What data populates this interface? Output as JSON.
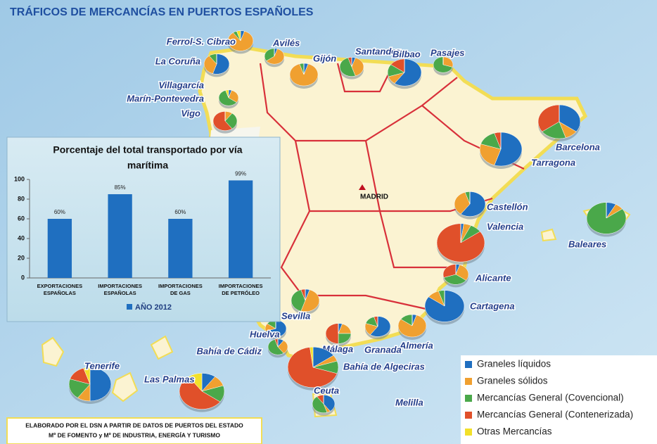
{
  "title": "TRÁFICOS DE MERCANCÍAS EN PUERTOS ESPAÑOLES",
  "capital": "MADRID",
  "legend": [
    {
      "name": "Graneles líquidos",
      "color": "#1f6fc0"
    },
    {
      "name": "Graneles sólidos",
      "color": "#f0a030"
    },
    {
      "name": "Mercancías General (Covencional)",
      "color": "#4aa84a"
    },
    {
      "name": "Mercancías General (Contenerizada)",
      "color": "#e0502a"
    },
    {
      "name": "Otras Mercancías",
      "color": "#f2e02a"
    }
  ],
  "ports": [
    {
      "name": "Ferrol-S. Cibrao",
      "shares": [
        5,
        85,
        5,
        0,
        5
      ]
    },
    {
      "name": "Avilés",
      "shares": [
        5,
        60,
        35,
        0,
        0
      ]
    },
    {
      "name": "La Coruña",
      "shares": [
        55,
        35,
        10,
        0,
        0
      ]
    },
    {
      "name": "Gijón",
      "shares": [
        5,
        90,
        5,
        0,
        0
      ]
    },
    {
      "name": "Santander",
      "shares": [
        5,
        40,
        50,
        5,
        0
      ]
    },
    {
      "name": "Bilbao",
      "shares": [
        60,
        10,
        15,
        15,
        0
      ]
    },
    {
      "name": "Pasajes",
      "shares": [
        0,
        30,
        70,
        0,
        0
      ]
    },
    {
      "name": "Villagarcía"
    },
    {
      "name": "Marín-Pontevedra",
      "shares": [
        5,
        30,
        60,
        0,
        5
      ]
    },
    {
      "name": "Vigo",
      "shares": [
        0,
        10,
        30,
        60,
        0
      ]
    },
    {
      "name": "Barcelona",
      "shares": [
        35,
        10,
        20,
        35,
        0
      ]
    },
    {
      "name": "Tarragona",
      "shares": [
        55,
        25,
        15,
        5,
        0
      ]
    },
    {
      "name": "Castellón",
      "shares": [
        60,
        35,
        5,
        0,
        0
      ]
    },
    {
      "name": "Valencia",
      "shares": [
        2,
        5,
        8,
        85,
        0
      ]
    },
    {
      "name": "Baleares",
      "shares": [
        8,
        7,
        85,
        0,
        0
      ]
    },
    {
      "name": "Alicante",
      "shares": [
        5,
        30,
        35,
        30,
        0
      ]
    },
    {
      "name": "Cartagena",
      "shares": [
        85,
        10,
        5,
        0,
        0
      ]
    },
    {
      "name": "Sevilla",
      "shares": [
        5,
        50,
        40,
        5,
        0
      ]
    },
    {
      "name": "Huelva",
      "shares": [
        70,
        15,
        15,
        0,
        0
      ]
    },
    {
      "name": "Almería",
      "shares": [
        5,
        80,
        15,
        0,
        0
      ]
    },
    {
      "name": "Granada",
      "shares": [
        60,
        20,
        15,
        5,
        0
      ]
    },
    {
      "name": "Málaga",
      "shares": [
        5,
        20,
        25,
        50,
        0
      ]
    },
    {
      "name": "Bahía de Cádiz",
      "shares": [
        10,
        30,
        55,
        5,
        0
      ]
    },
    {
      "name": "Bahía de Algeciras",
      "shares": [
        15,
        5,
        10,
        68,
        2
      ]
    },
    {
      "name": "Ceuta",
      "shares": [
        40,
        5,
        45,
        10,
        0
      ]
    },
    {
      "name": "Melilla"
    },
    {
      "name": "Tenerife",
      "shares": [
        50,
        10,
        20,
        15,
        5
      ]
    },
    {
      "name": "Las Palmas",
      "shares": [
        10,
        10,
        15,
        55,
        10
      ]
    }
  ],
  "footer": [
    "ELABORADO POR EL DSN A PARTIR DE DATOS DE PUERTOS DEL ESTADO",
    "Mº DE FOMENTO y Mº DE INDUSTRIA, ENERGÍA Y TURISMO"
  ],
  "chart_data": {
    "type": "bar",
    "title": [
      "Porcentaje del total transportado por vía",
      "marítima"
    ],
    "categories": [
      "EXPORTACIONES ESPAÑOLAS",
      "IMPORTACIONES ESPAÑOLAS",
      "IMPORTACIONES DE GAS",
      "IMPORTACIONES DE PETRÓLEO"
    ],
    "series": [
      {
        "name": "AÑO 2012",
        "color": "#1f6fc0",
        "values": [
          60,
          85,
          60,
          99
        ],
        "value_labels": [
          "60%",
          "85%",
          "60%",
          "99%"
        ]
      }
    ],
    "ylim": [
      0,
      100
    ],
    "yticks": [
      0,
      20,
      40,
      60,
      80,
      100
    ]
  }
}
